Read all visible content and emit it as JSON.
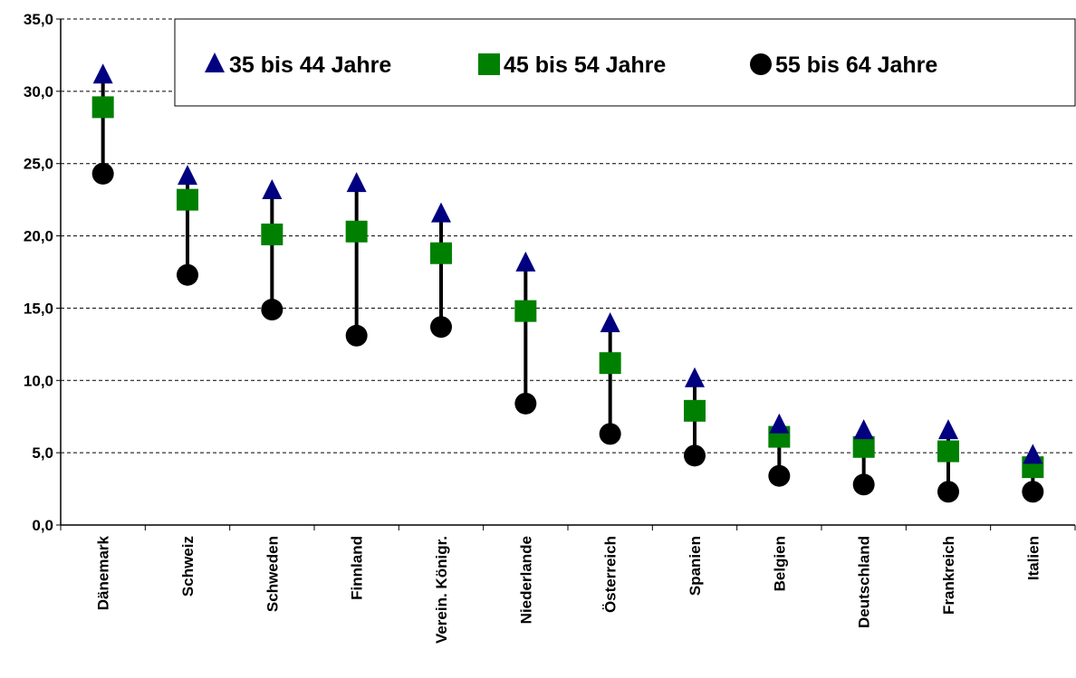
{
  "chart_data": {
    "type": "highlow",
    "categories": [
      "Dänemark",
      "Schweiz",
      "Schweden",
      "Finnland",
      "Verein. Königr.",
      "Niederlande",
      "Österreich",
      "Spanien",
      "Belgien",
      "Deutschland",
      "Frankreich",
      "Italien"
    ],
    "series": [
      {
        "name": "35 bis 44 Jahre",
        "color": "#000080",
        "marker": "triangle",
        "values": [
          31.1,
          24.1,
          23.1,
          23.6,
          21.5,
          18.1,
          13.9,
          10.1,
          6.9,
          6.5,
          6.5,
          4.8
        ]
      },
      {
        "name": "45 bis 54 Jahre",
        "color": "#008000",
        "marker": "square",
        "values": [
          28.9,
          22.5,
          20.1,
          20.3,
          18.8,
          14.8,
          11.2,
          7.9,
          6.1,
          5.4,
          5.1,
          4.0
        ]
      },
      {
        "name": "55 bis 64 Jahre",
        "color": "#000000",
        "marker": "circle",
        "values": [
          24.3,
          17.3,
          14.9,
          13.1,
          13.7,
          8.4,
          6.3,
          4.8,
          3.4,
          2.8,
          2.3,
          2.3
        ]
      }
    ],
    "ylim": [
      0,
      35
    ],
    "yticks": [
      {
        "value": 0,
        "label": "0,0"
      },
      {
        "value": 5,
        "label": "5,0"
      },
      {
        "value": 10,
        "label": "10,0"
      },
      {
        "value": 15,
        "label": "15,0"
      },
      {
        "value": 20,
        "label": "20,0"
      },
      {
        "value": 25,
        "label": "25,0"
      },
      {
        "value": 30,
        "label": "30,0"
      },
      {
        "value": 35,
        "label": "35,0"
      }
    ],
    "grid": true,
    "legend": "top"
  }
}
